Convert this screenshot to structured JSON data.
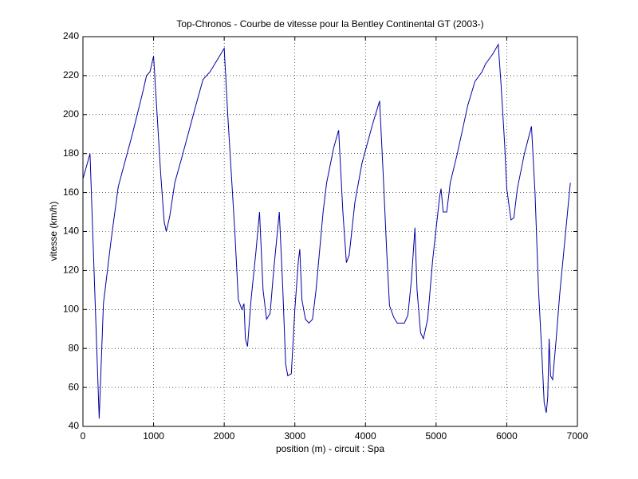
{
  "chart_data": {
    "type": "line",
    "title": "Top-Chronos - Courbe de vitesse pour la Bentley Continental GT (2003-)",
    "x_label": "position (m) - circuit : Spa",
    "y_label": "vitesse (km/h)",
    "color": "#0000a0",
    "grid": true,
    "xlim": [
      0,
      7000
    ],
    "ylim": [
      40,
      240
    ],
    "xticks": [
      0,
      1000,
      2000,
      3000,
      4000,
      5000,
      6000,
      7000
    ],
    "yticks": [
      40,
      60,
      80,
      100,
      120,
      140,
      160,
      180,
      200,
      220,
      240
    ],
    "x": [
      0,
      100,
      230,
      290,
      400,
      500,
      700,
      850,
      900,
      950,
      1000,
      1100,
      1150,
      1180,
      1230,
      1300,
      1400,
      1600,
      1700,
      1800,
      1900,
      2000,
      2050,
      2100,
      2150,
      2200,
      2250,
      2280,
      2300,
      2330,
      2380,
      2450,
      2500,
      2550,
      2600,
      2650,
      2700,
      2780,
      2830,
      2870,
      2900,
      2950,
      3000,
      3050,
      3070,
      3100,
      3150,
      3200,
      3250,
      3300,
      3400,
      3450,
      3550,
      3620,
      3680,
      3730,
      3770,
      3850,
      3950,
      4100,
      4200,
      4250,
      4300,
      4340,
      4400,
      4450,
      4550,
      4600,
      4650,
      4700,
      4730,
      4780,
      4820,
      4880,
      4950,
      5050,
      5070,
      5100,
      5150,
      5200,
      5300,
      5450,
      5550,
      5650,
      5700,
      5800,
      5880,
      5920,
      5970,
      6000,
      6060,
      6100,
      6150,
      6250,
      6350,
      6400,
      6450,
      6500,
      6530,
      6560,
      6580,
      6600,
      6620,
      6650,
      6700,
      6750,
      6900
    ],
    "values": [
      167,
      180,
      44,
      103,
      136,
      163,
      190,
      212,
      220,
      222,
      230,
      170,
      145,
      140,
      148,
      165,
      178,
      205,
      218,
      222,
      228,
      234,
      200,
      170,
      140,
      105,
      100,
      103,
      85,
      81,
      105,
      130,
      150,
      110,
      95,
      98,
      120,
      150,
      110,
      72,
      66,
      67,
      100,
      125,
      131,
      105,
      95,
      93,
      95,
      110,
      150,
      165,
      183,
      192,
      150,
      124,
      128,
      155,
      175,
      195,
      207,
      170,
      130,
      102,
      96,
      93,
      93,
      97,
      115,
      142,
      110,
      88,
      85,
      95,
      125,
      158,
      162,
      150,
      150,
      165,
      180,
      205,
      217,
      222,
      226,
      231,
      236,
      215,
      185,
      162,
      146,
      147,
      162,
      180,
      194,
      160,
      110,
      75,
      52,
      47,
      55,
      85,
      66,
      64,
      85,
      108,
      165
    ]
  }
}
